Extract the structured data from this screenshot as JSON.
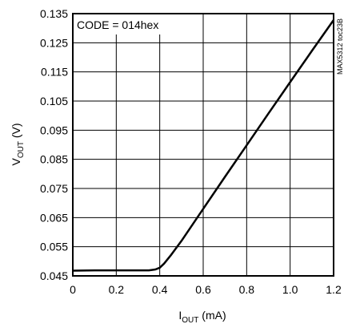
{
  "chart_data": {
    "type": "line",
    "title": "",
    "annotation": "CODE = 014hex",
    "side_label": "MAX5312 toc23B",
    "xlabel": {
      "main": "I",
      "sub": "OUT",
      "rest": " (mA)"
    },
    "ylabel": {
      "main": "V",
      "sub": "OUT",
      "rest": " (V)"
    },
    "xlim": [
      0,
      1.2
    ],
    "ylim": [
      0.045,
      0.135
    ],
    "xticks": [
      "0",
      "0.2",
      "0.4",
      "0.6",
      "0.8",
      "1.0",
      "1.2"
    ],
    "yticks": [
      "0.045",
      "0.055",
      "0.065",
      "0.075",
      "0.085",
      "0.095",
      "0.105",
      "0.115",
      "0.125",
      "0.135"
    ],
    "grid": true,
    "series": [
      {
        "x": [
          0,
          0.1,
          0.2,
          0.3,
          0.35,
          0.38,
          0.4,
          0.42,
          0.45,
          0.5,
          0.6,
          0.7,
          0.8,
          0.9,
          1.0,
          1.1,
          1.2
        ],
        "y": [
          0.0468,
          0.0469,
          0.0469,
          0.0469,
          0.0469,
          0.0472,
          0.0478,
          0.0492,
          0.052,
          0.057,
          0.068,
          0.079,
          0.0898,
          0.1007,
          0.1115,
          0.1222,
          0.1328
        ]
      }
    ],
    "colors": {
      "line": "#000000",
      "grid": "#000000",
      "frame": "#000000"
    }
  }
}
